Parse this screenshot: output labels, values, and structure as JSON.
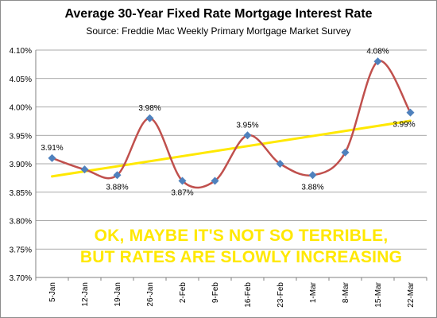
{
  "chart_data": {
    "type": "line",
    "title": "Average  30-Year Fixed Rate Mortgage Interest Rate",
    "subtitle": "Source:  Freddie  Mac Weekly  Primary  Mortgage Market Survey",
    "categories": [
      "5-Jan",
      "12-Jan",
      "19-Jan",
      "26-Jan",
      "2-Feb",
      "9-Feb",
      "16-Feb",
      "23-Feb",
      "1-Mar",
      "8-Mar",
      "15-Mar",
      "22-Mar"
    ],
    "series": [
      {
        "values": [
          3.91,
          3.89,
          3.88,
          3.98,
          3.87,
          3.87,
          3.95,
          3.9,
          3.88,
          3.92,
          4.08,
          3.99
        ],
        "color": "#c0504d",
        "marker_color": "#4f81bd"
      }
    ],
    "trendline": {
      "type": "linear",
      "color": "#ffe800"
    },
    "data_labels": [
      {
        "index": 0,
        "text": "3.91%"
      },
      {
        "index": 2,
        "text": "3.88%"
      },
      {
        "index": 3,
        "text": "3.98%"
      },
      {
        "index": 4,
        "text": "3.87%"
      },
      {
        "index": 6,
        "text": "3.95%"
      },
      {
        "index": 8,
        "text": "3.88%"
      },
      {
        "index": 10,
        "text": "4.08%"
      },
      {
        "index": 11,
        "text": "3.99%"
      }
    ],
    "y_ticks": [
      "3.70%",
      "3.75%",
      "3.80%",
      "3.85%",
      "3.90%",
      "3.95%",
      "4.00%",
      "4.05%",
      "4.10%"
    ],
    "ylim": [
      3.7,
      4.1
    ],
    "grid": true,
    "xlabel": "",
    "ylabel": ""
  },
  "annotation": {
    "line1": "OK, MAYBE IT'S NOT SO TERRIBLE,",
    "line2": "BUT RATES ARE SLOWLY INCREASING"
  }
}
